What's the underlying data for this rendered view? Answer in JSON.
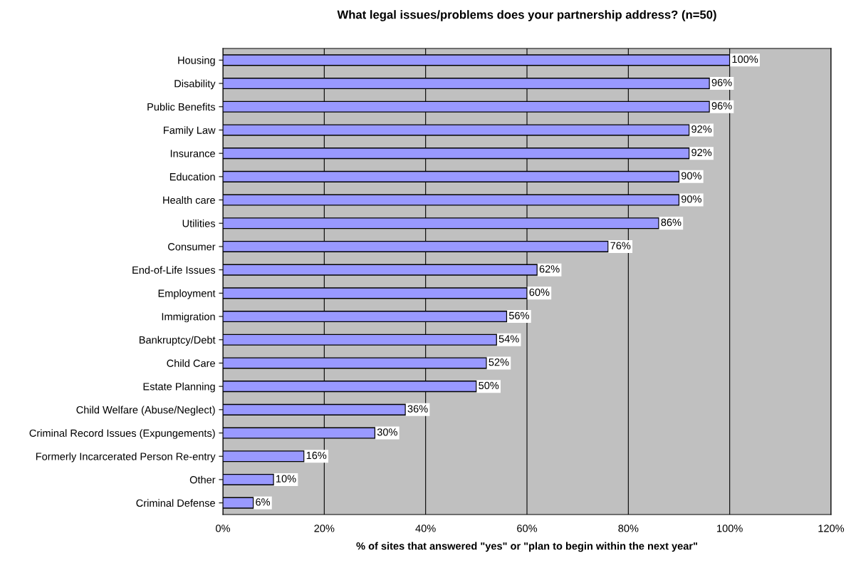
{
  "chart_data": {
    "type": "bar",
    "orientation": "horizontal",
    "title": "What legal issues/problems does your partnership address? (n=50)",
    "xlabel": "% of sites that answered \"yes\" or \"plan to begin within the next year\"",
    "categories": [
      "Housing",
      "Disability",
      "Public Benefits",
      "Family Law",
      "Insurance",
      "Education",
      "Health care",
      "Utilities",
      "Consumer",
      "End-of-Life Issues",
      "Employment",
      "Immigration",
      "Bankruptcy/Debt",
      "Child Care",
      "Estate Planning",
      "Child Welfare (Abuse/Neglect)",
      "Criminal Record Issues (Expungements)",
      "Formerly Incarcerated Person Re-entry",
      "Other",
      "Criminal Defense"
    ],
    "values": [
      100,
      96,
      96,
      92,
      92,
      90,
      90,
      86,
      76,
      62,
      60,
      56,
      54,
      52,
      50,
      36,
      30,
      16,
      10,
      6
    ],
    "value_labels": [
      "100%",
      "96%",
      "96%",
      "92%",
      "92%",
      "90%",
      "90%",
      "86%",
      "76%",
      "62%",
      "60%",
      "56%",
      "54%",
      "52%",
      "50%",
      "36%",
      "30%",
      "16%",
      "10%",
      "6%"
    ],
    "color": "#9999ff",
    "xlim": [
      0,
      120
    ],
    "xticks": [
      {
        "value": 0,
        "label": "0%"
      },
      {
        "value": 20,
        "label": "20%"
      },
      {
        "value": 40,
        "label": "40%"
      },
      {
        "value": 60,
        "label": "60%"
      },
      {
        "value": 80,
        "label": "80%"
      },
      {
        "value": 100,
        "label": "100%"
      },
      {
        "value": 120,
        "label": "120%"
      }
    ],
    "grid": "x",
    "legend": false
  }
}
